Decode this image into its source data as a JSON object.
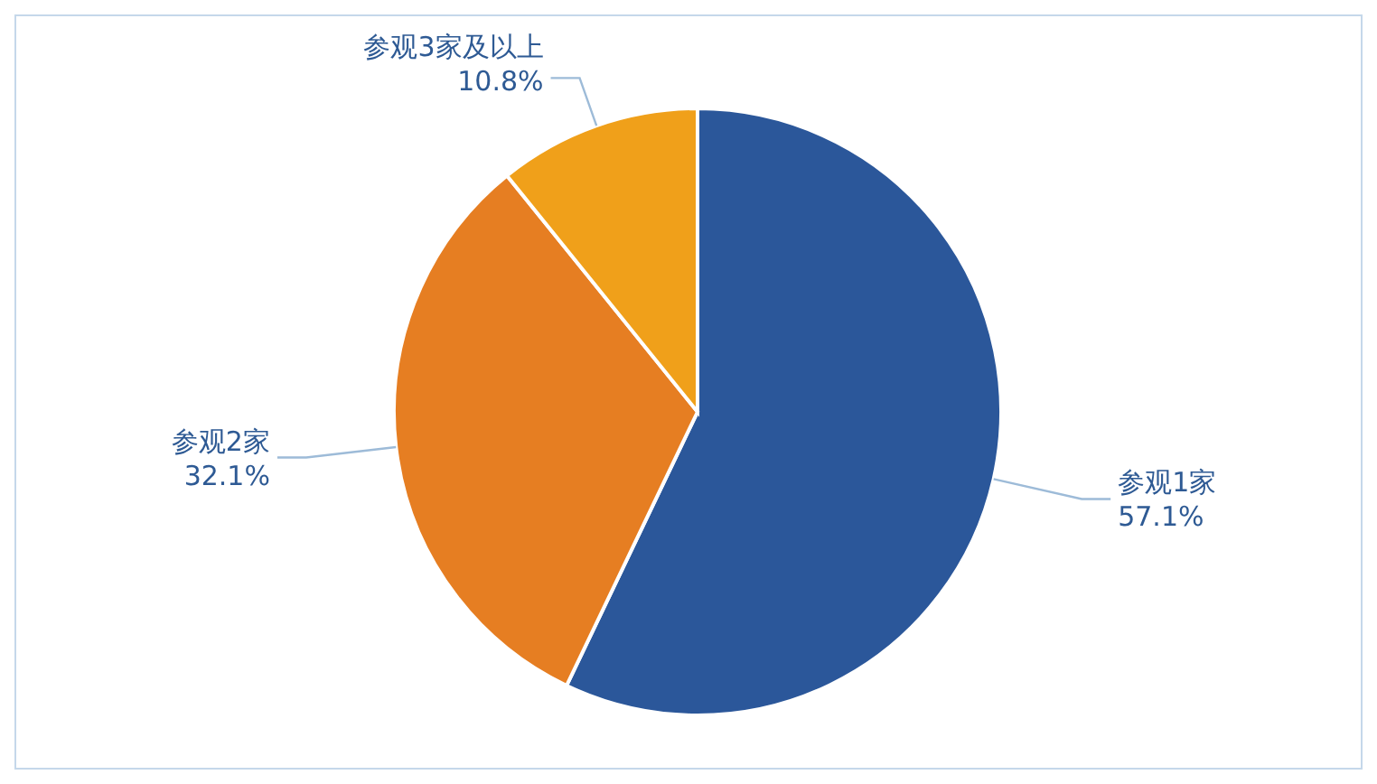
{
  "chart_data": {
    "type": "pie",
    "categories": [
      "参观1家",
      "参观2家",
      "参观3家及以上"
    ],
    "values": [
      57.1,
      32.1,
      10.8
    ],
    "colors": [
      "#2b579a",
      "#e67e22",
      "#f0a01a"
    ],
    "value_labels": [
      "57.1%",
      "32.1%",
      "10.8%"
    ]
  }
}
